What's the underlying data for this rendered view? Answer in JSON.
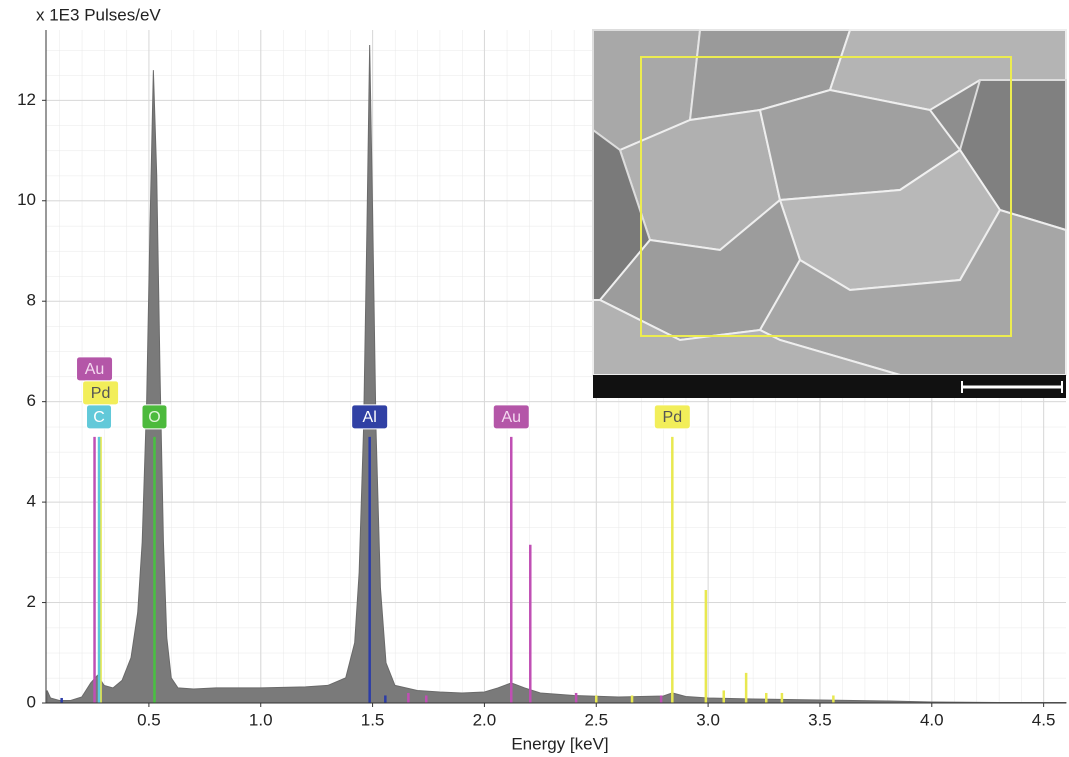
{
  "chart_data": {
    "type": "area",
    "y_label": "x 1E3 Pulses/eV",
    "x_label": "Energy [keV]",
    "color": "#7a7a7a",
    "xlim": [
      0.04,
      4.6
    ],
    "ylim": [
      0,
      13.4
    ],
    "xticks": [
      0.5,
      {
        "value": 1,
        "label": "1.0"
      },
      1.5,
      {
        "value": 2,
        "label": "2.0"
      },
      2.5,
      {
        "value": 3,
        "label": "3.0"
      },
      3.5,
      {
        "value": 4,
        "label": "4.0"
      },
      4.5
    ],
    "yticks": [
      0,
      2,
      4,
      6,
      8,
      10,
      12
    ],
    "grid": true,
    "x": [
      0.045,
      0.06,
      0.1,
      0.15,
      0.2,
      0.24,
      0.27,
      0.3,
      0.34,
      0.38,
      0.42,
      0.45,
      0.47,
      0.49,
      0.505,
      0.52,
      0.535,
      0.55,
      0.565,
      0.58,
      0.6,
      0.63,
      0.7,
      0.8,
      0.9,
      1.0,
      1.1,
      1.2,
      1.3,
      1.38,
      1.42,
      1.44,
      1.46,
      1.475,
      1.487,
      1.5,
      1.515,
      1.535,
      1.56,
      1.6,
      1.7,
      1.8,
      1.9,
      2.0,
      2.06,
      2.12,
      2.18,
      2.25,
      2.4,
      2.6,
      2.8,
      2.84,
      2.9,
      3.0,
      3.2,
      3.5,
      3.8,
      4.0,
      4.3,
      4.6
    ],
    "values": [
      0.25,
      0.1,
      0.05,
      0.05,
      0.12,
      0.4,
      0.55,
      0.35,
      0.3,
      0.45,
      0.9,
      1.8,
      3.2,
      6.0,
      9.5,
      12.6,
      10.5,
      6.5,
      3.2,
      1.3,
      0.5,
      0.3,
      0.28,
      0.3,
      0.3,
      0.3,
      0.31,
      0.32,
      0.35,
      0.5,
      1.2,
      2.6,
      5.5,
      9.5,
      13.1,
      9.8,
      5.5,
      2.3,
      0.8,
      0.35,
      0.25,
      0.22,
      0.2,
      0.22,
      0.3,
      0.4,
      0.3,
      0.2,
      0.15,
      0.12,
      0.14,
      0.2,
      0.13,
      0.1,
      0.08,
      0.06,
      0.04,
      0.02,
      0.01,
      0.01
    ],
    "markers": [
      {
        "label": "Au",
        "x": 0.257,
        "height": 5.3,
        "color": "#c04fb4",
        "box": "#b456a8",
        "text_color": "#f4d8f0"
      },
      {
        "label": "Pd",
        "x": 0.284,
        "height": 5.3,
        "color": "#e8e850",
        "box": "#f2ee5a",
        "text_color": "#555555"
      },
      {
        "label": "C",
        "x": 0.277,
        "height": 5.3,
        "color": "#5cc8dc",
        "box": "#62c9d9",
        "text_color": "#ffffff"
      },
      {
        "label": "O",
        "x": 0.525,
        "height": 5.3,
        "color": "#48c040",
        "box": "#4cba3c",
        "text_color": "#dff5d8"
      },
      {
        "label": "Al",
        "x": 1.487,
        "height": 5.3,
        "color": "#2c3ca8",
        "box": "#3040a4",
        "text_color": "#ffffff"
      },
      {
        "label": "Au",
        "x": 2.12,
        "height": 5.3,
        "color": "#c04fb4",
        "box": "#b456a8",
        "text_color": "#f4d8f0"
      },
      {
        "label": "Pd",
        "x": 2.84,
        "height": 5.3,
        "color": "#e8e850",
        "box": "#f2ee5a",
        "text_color": "#555555"
      }
    ],
    "minor_lines": [
      {
        "x": 0.11,
        "height": 0.1,
        "color": "#2c3ca8"
      },
      {
        "x": 1.557,
        "height": 0.15,
        "color": "#2c3ca8"
      },
      {
        "x": 1.66,
        "height": 0.2,
        "color": "#c04fb4"
      },
      {
        "x": 1.74,
        "height": 0.15,
        "color": "#c04fb4"
      },
      {
        "x": 2.205,
        "height": 3.15,
        "color": "#c04fb4"
      },
      {
        "x": 2.41,
        "height": 0.2,
        "color": "#c04fb4"
      },
      {
        "x": 2.5,
        "height": 0.15,
        "color": "#e8e850"
      },
      {
        "x": 2.66,
        "height": 0.15,
        "color": "#e8e850"
      },
      {
        "x": 2.79,
        "height": 0.15,
        "color": "#c04fb4"
      },
      {
        "x": 2.99,
        "height": 2.25,
        "color": "#e8e850"
      },
      {
        "x": 3.07,
        "height": 0.25,
        "color": "#e8e850"
      },
      {
        "x": 3.17,
        "height": 0.6,
        "color": "#e8e850"
      },
      {
        "x": 3.26,
        "height": 0.2,
        "color": "#e8e850"
      },
      {
        "x": 3.33,
        "height": 0.2,
        "color": "#e8e850"
      },
      {
        "x": 3.56,
        "height": 0.15,
        "color": "#e8e850"
      }
    ]
  }
}
